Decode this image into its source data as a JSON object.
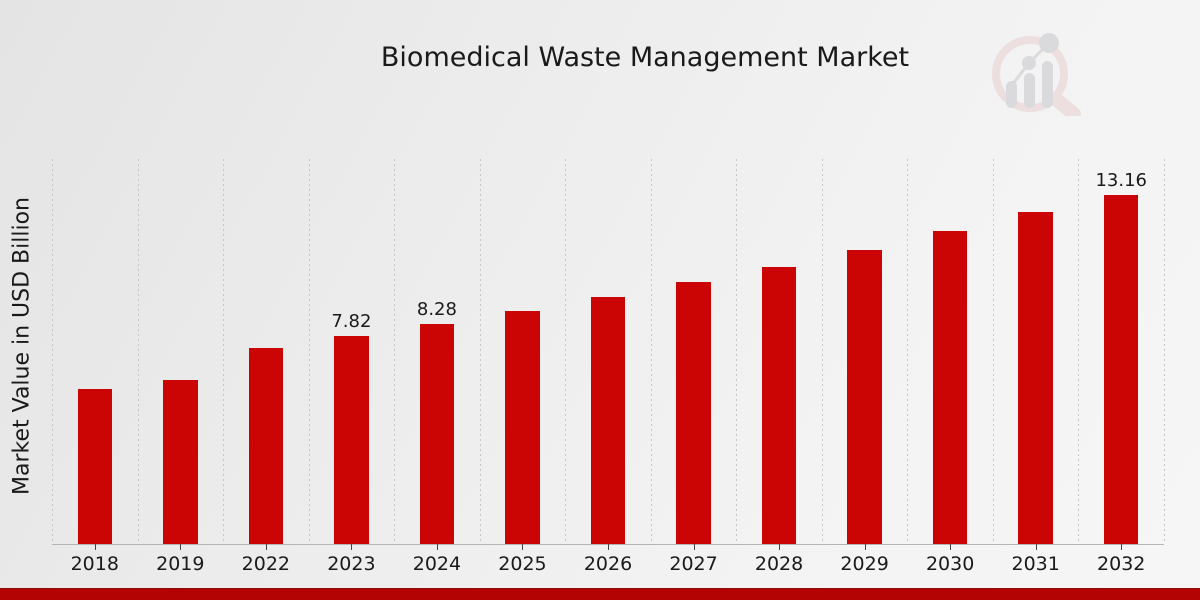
{
  "title": "Biomedical Waste Management Market",
  "colors": {
    "bar": "#cb0404",
    "bottom_band": "#b30303",
    "text": "#1a1a1a",
    "gridline": "#c6c6c6",
    "axis_line": "#b5b5b5",
    "logo_ring": "#e9cdd0",
    "logo_gray": "#c6c6cb"
  },
  "logo": {
    "name": "magnifier-bar-chart-logo"
  },
  "chart_data": {
    "type": "bar",
    "title": "Biomedical Waste Management Market",
    "xlabel": "",
    "ylabel": "Market Value in USD Billion",
    "categories": [
      "2018",
      "2019",
      "2022",
      "2023",
      "2024",
      "2025",
      "2026",
      "2027",
      "2028",
      "2029",
      "2030",
      "2031",
      "2032"
    ],
    "values": [
      5.82,
      6.17,
      7.37,
      7.82,
      8.28,
      8.78,
      9.29,
      9.88,
      10.44,
      11.09,
      11.78,
      12.49,
      13.16
    ],
    "data_labels": {
      "2023": "7.82",
      "2024": "8.28",
      "2032": "13.16"
    },
    "ylim": [
      0,
      14.5
    ],
    "grid": "vertical dashed lines at category boundaries",
    "legend": false,
    "bar_color": "#cb0404"
  }
}
